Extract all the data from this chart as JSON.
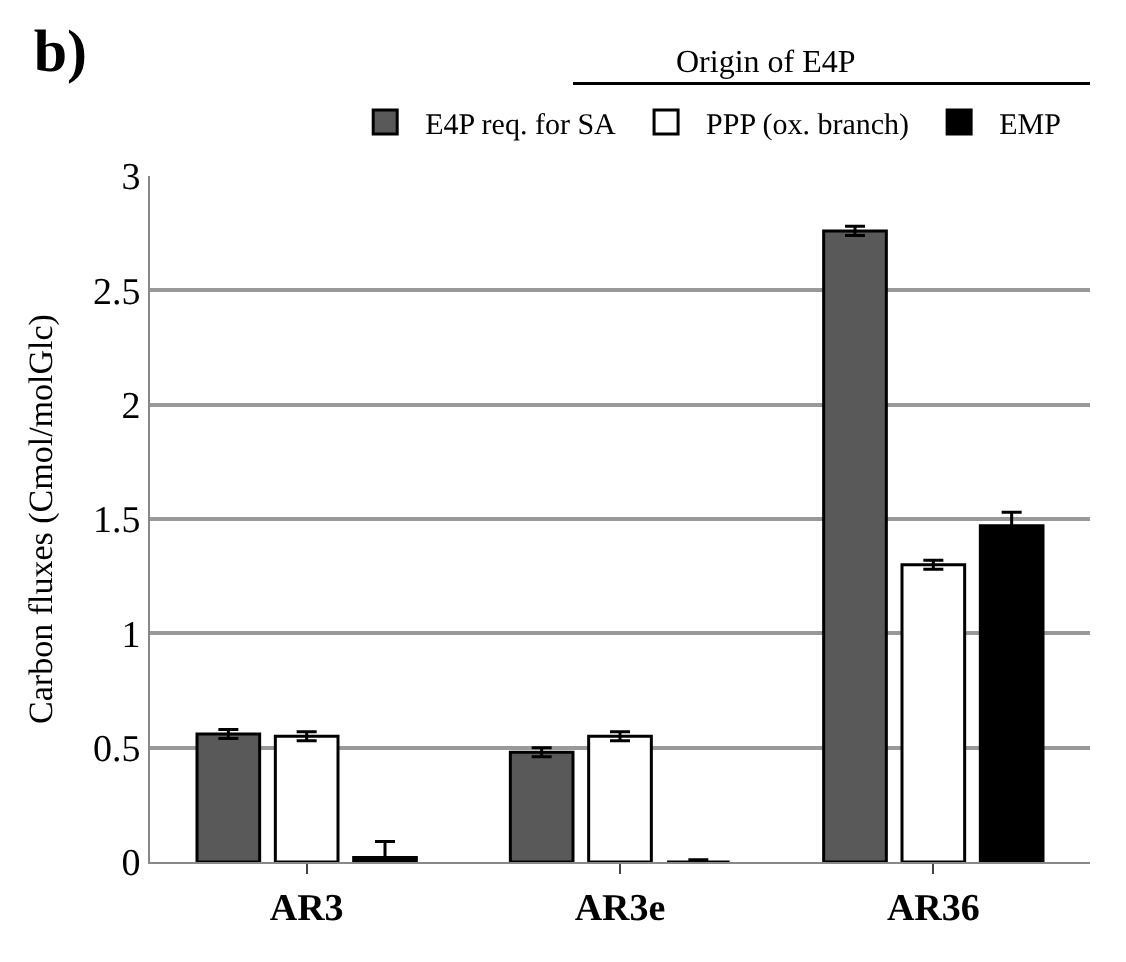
{
  "chart_data": {
    "type": "bar",
    "title": "b)",
    "ylabel": "Carbon fluxes (Cmol/molGlc)",
    "legend_title": "Origin of E4P",
    "categories": [
      "AR3",
      "AR3e",
      "AR36"
    ],
    "series": [
      {
        "name": "E4P req. for SA",
        "color": "#595959",
        "values": [
          0.56,
          0.48,
          2.76
        ],
        "errors": [
          0.02,
          0.02,
          0.02
        ]
      },
      {
        "name": "PPP (ox. branch)",
        "color": "#ffffff",
        "values": [
          0.55,
          0.55,
          1.3
        ],
        "errors": [
          0.02,
          0.02,
          0.02
        ]
      },
      {
        "name": "EMP",
        "color": "#000000",
        "values": [
          0.02,
          0.0,
          1.47
        ],
        "errors": [
          [
            0.02,
            0.09
          ],
          [
            0,
            0.01
          ],
          0.06
        ]
      }
    ],
    "ylim": [
      0,
      3
    ],
    "yticks": [
      0,
      0.5,
      1,
      1.5,
      2,
      2.5,
      3
    ],
    "grid": "y",
    "legend": "top"
  }
}
